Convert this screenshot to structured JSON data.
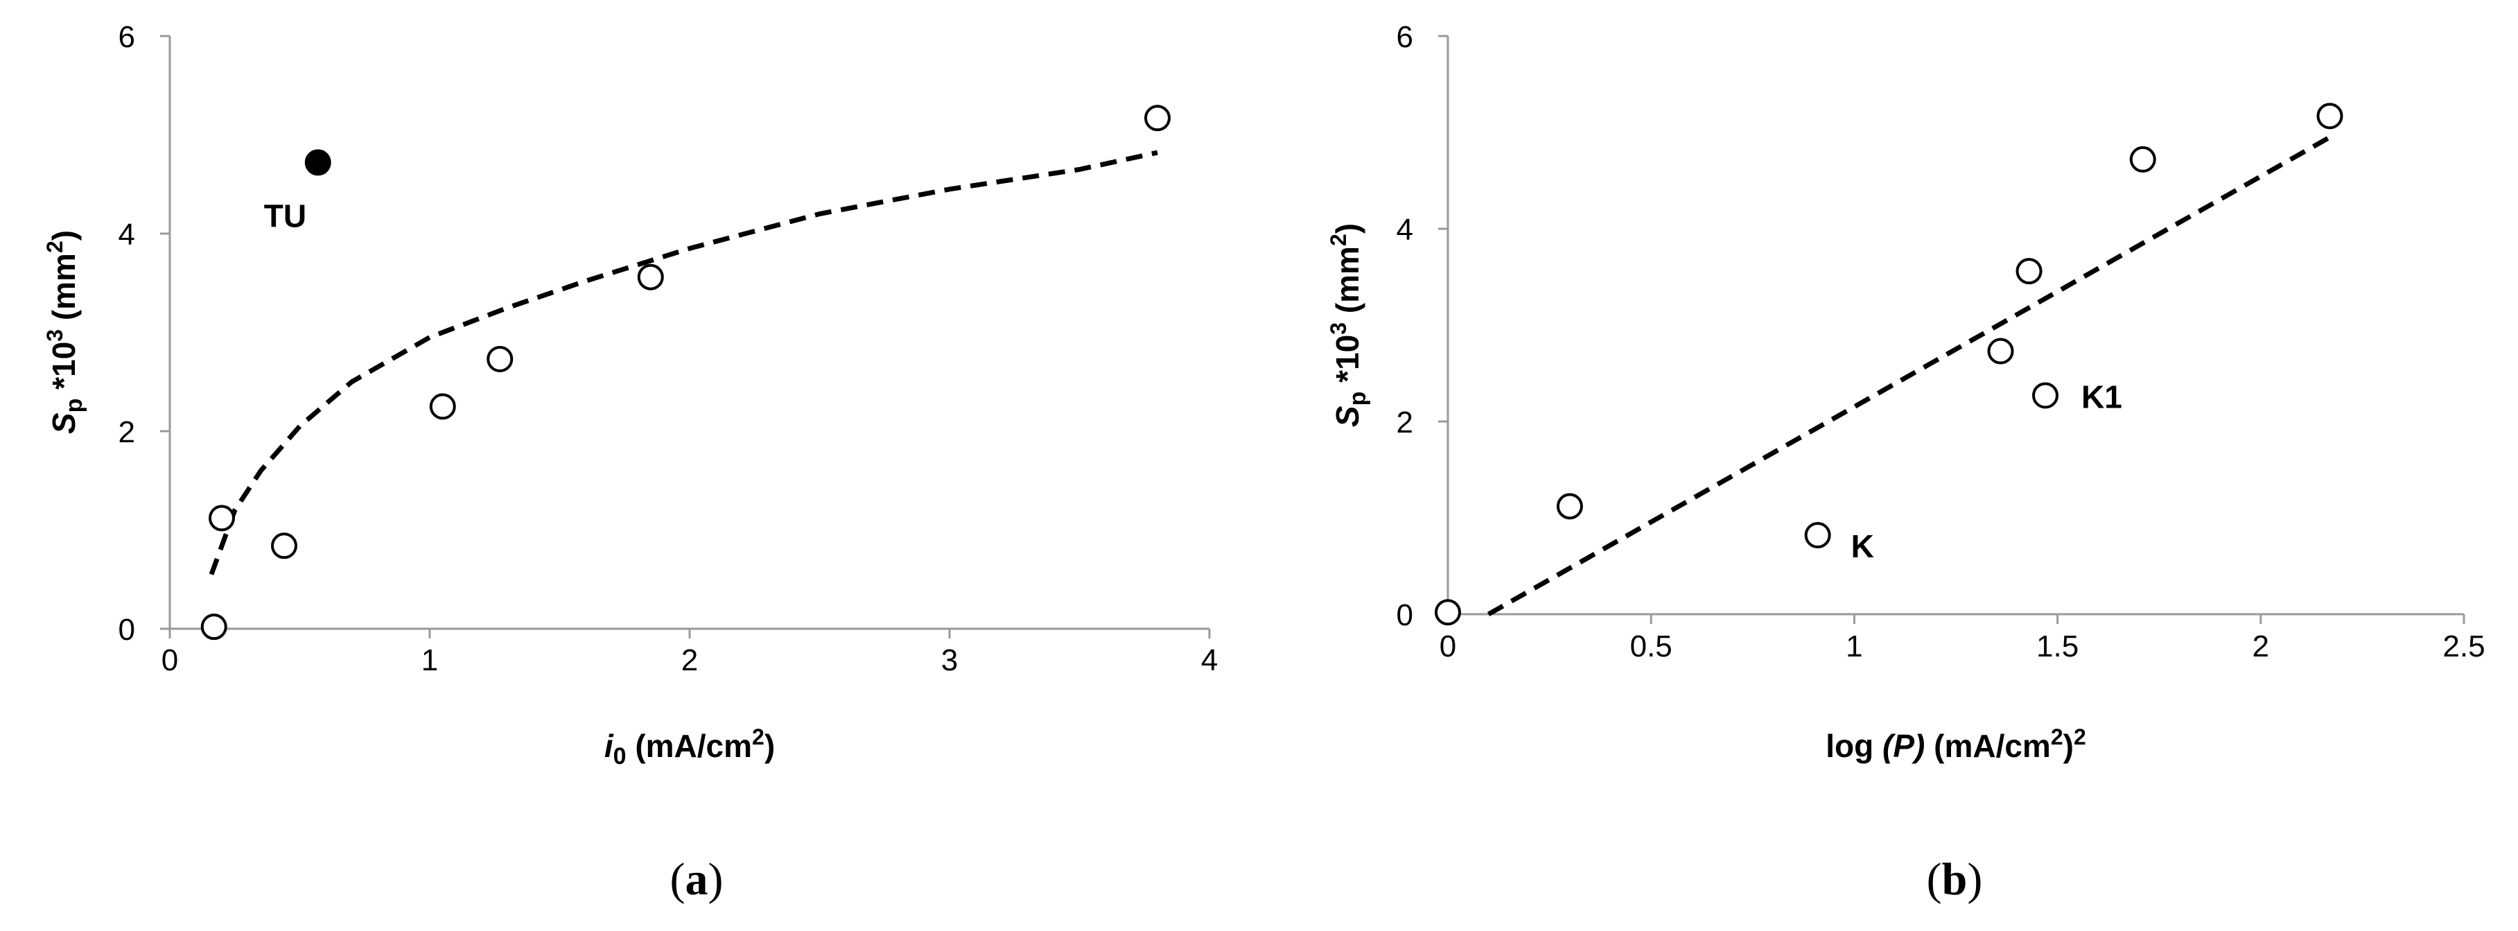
{
  "chart_data": [
    {
      "type": "scatter",
      "panel_label": "a",
      "xlabel": {
        "var": "i",
        "sub": "0",
        "rest": " (mA/cm",
        "sup": "2",
        "end": ")"
      },
      "ylabel": {
        "var": "S",
        "sub": "p",
        "rest": " *10",
        "sup": "3",
        "rest2": " (mm",
        "sup2": "2",
        "end": ")"
      },
      "xlim": [
        0,
        4
      ],
      "ylim": [
        0,
        6
      ],
      "xticks": [
        0,
        1,
        2,
        3,
        4
      ],
      "yticks": [
        0,
        2,
        4,
        6
      ],
      "grid": false,
      "series": [
        {
          "marker": "open-circle",
          "x": [
            0.17,
            0.2,
            0.44,
            1.05,
            1.27,
            1.85,
            3.8
          ],
          "y": [
            0.02,
            1.12,
            0.84,
            2.25,
            2.73,
            3.56,
            5.17
          ]
        },
        {
          "marker": "filled-circle",
          "x": [
            0.57
          ],
          "y": [
            4.72
          ]
        }
      ],
      "fit": {
        "style": "dashed",
        "model": "logarithmic",
        "x": [
          0.16,
          0.25,
          0.35,
          0.5,
          0.7,
          1.0,
          1.3,
          1.6,
          2.0,
          2.5,
          3.0,
          3.5,
          3.8
        ],
        "y": [
          0.55,
          1.2,
          1.6,
          2.05,
          2.5,
          2.95,
          3.25,
          3.52,
          3.85,
          4.2,
          4.45,
          4.65,
          4.82
        ]
      },
      "annotations": [
        {
          "text": "TU",
          "x": 0.57,
          "y": 4.72
        }
      ]
    },
    {
      "type": "scatter",
      "panel_label": "b",
      "xlabel": {
        "pre": "log ",
        "ital": "(P)",
        "rest": " (mA/cm",
        "sup": "2",
        "end": ")",
        "sup2": "2"
      },
      "ylabel": {
        "var": "S",
        "sub": "p",
        "rest": " *10",
        "sup": "3",
        "rest2": " (mm",
        "sup2": "2",
        "end": ")"
      },
      "xlim": [
        0,
        2.5
      ],
      "ylim": [
        0,
        6
      ],
      "xticks": [
        "0",
        "0.5",
        "1",
        "1.5",
        "2",
        "2.5"
      ],
      "yticks": [
        0,
        2,
        4,
        6
      ],
      "grid": false,
      "series": [
        {
          "marker": "open-circle",
          "x": [
            0.0,
            0.3,
            0.91,
            1.36,
            1.43,
            1.47,
            1.71,
            2.17
          ],
          "y": [
            0.02,
            1.12,
            0.82,
            2.73,
            3.56,
            2.27,
            4.72,
            5.17
          ]
        }
      ],
      "fit": {
        "style": "dashed",
        "model": "linear",
        "x": [
          0.1,
          2.17
        ],
        "y": [
          0.0,
          4.95
        ]
      },
      "annotations": [
        {
          "text": "K1",
          "x": 1.47,
          "y": 2.27
        },
        {
          "text": "K",
          "x": 0.91,
          "y": 0.82
        }
      ]
    }
  ]
}
